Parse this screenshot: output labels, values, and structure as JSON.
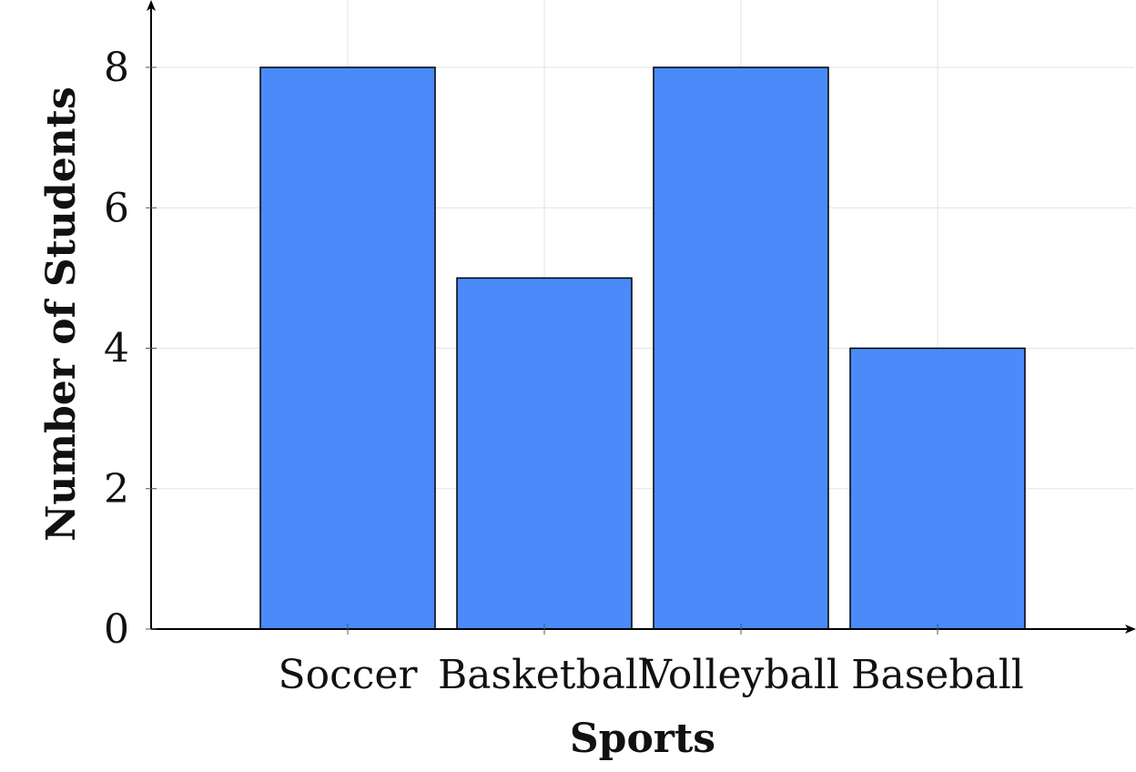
{
  "chart_data": {
    "type": "bar",
    "categories": [
      "Soccer",
      "Basketball",
      "Volleyball",
      "Baseball"
    ],
    "values": [
      8,
      5,
      8,
      4
    ],
    "title": "",
    "xlabel": "Sports",
    "ylabel": "Number of Students",
    "ylim": [
      0,
      8
    ],
    "yticks": [
      "0",
      "2",
      "4",
      "6",
      "8"
    ],
    "grid": true,
    "bar_color": "#4a8af9"
  }
}
